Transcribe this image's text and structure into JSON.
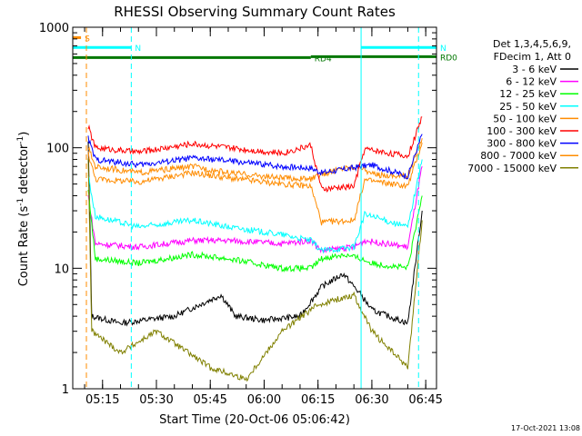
{
  "chart_data": {
    "type": "line",
    "title": "RHESSI Observing Summary Count Rates",
    "xlabel": "Start Time (20-Oct-06 05:06:42)",
    "ylabel_main": "Count Rate (s",
    "ylabel_sup1": "-1",
    "ylabel_mid": " detector",
    "ylabel_sup2": "-1",
    "ylabel_end": ")",
    "footer": "17-Oct-2021 13:08",
    "y_scale": "log",
    "ylim": [
      1,
      1000
    ],
    "xlim": [
      "05:06:42",
      "06:48:00"
    ],
    "x_ticks": [
      "05:15",
      "05:30",
      "05:45",
      "06:00",
      "06:15",
      "06:30",
      "06:45"
    ],
    "y_ticks": [
      {
        "value": 1,
        "label": "1"
      },
      {
        "value": 10,
        "label": "10"
      },
      {
        "value": 100,
        "label": "100"
      },
      {
        "value": 1000,
        "label": "1000"
      }
    ],
    "legend_header": [
      "Det 1,3,4,5,6,9,",
      "FDecim 1, Att 0"
    ],
    "legend_position": "right",
    "series": [
      {
        "name": "3 - 6 keV",
        "color": "#000000",
        "points": [
          [
            "05:11",
            110
          ],
          [
            "05:12",
            4
          ],
          [
            "05:20",
            3.5
          ],
          [
            "05:35",
            4
          ],
          [
            "05:48",
            6
          ],
          [
            "05:52",
            4
          ],
          [
            "06:00",
            3.7
          ],
          [
            "06:10",
            4
          ],
          [
            "06:16",
            7
          ],
          [
            "06:22",
            9
          ],
          [
            "06:27",
            6
          ],
          [
            "06:30",
            4.5
          ],
          [
            "06:40",
            3.5
          ],
          [
            "06:44",
            30
          ]
        ]
      },
      {
        "name": "6 - 12 keV",
        "color": "#ff00ff",
        "points": [
          [
            "05:11",
            40
          ],
          [
            "05:13",
            16
          ],
          [
            "05:25",
            15
          ],
          [
            "05:40",
            17
          ],
          [
            "05:50",
            17
          ],
          [
            "06:05",
            16
          ],
          [
            "06:13",
            17
          ],
          [
            "06:16",
            14
          ],
          [
            "06:25",
            15
          ],
          [
            "06:28",
            17
          ],
          [
            "06:40",
            15
          ],
          [
            "06:44",
            70
          ]
        ]
      },
      {
        "name": "12 - 25 keV",
        "color": "#00ff00",
        "points": [
          [
            "05:11",
            45
          ],
          [
            "05:13",
            12
          ],
          [
            "05:25",
            11
          ],
          [
            "05:40",
            13
          ],
          [
            "05:50",
            12
          ],
          [
            "06:05",
            10
          ],
          [
            "06:13",
            10
          ],
          [
            "06:16",
            12
          ],
          [
            "06:22",
            13
          ],
          [
            "06:27",
            12
          ],
          [
            "06:30",
            11
          ],
          [
            "06:40",
            10
          ],
          [
            "06:44",
            40
          ]
        ]
      },
      {
        "name": "25 - 50 keV",
        "color": "#00ffff",
        "points": [
          [
            "05:11",
            60
          ],
          [
            "05:13",
            27
          ],
          [
            "05:25",
            22
          ],
          [
            "05:40",
            25
          ],
          [
            "05:50",
            22
          ],
          [
            "06:05",
            19
          ],
          [
            "06:13",
            17
          ],
          [
            "06:16",
            14
          ],
          [
            "06:25",
            15
          ],
          [
            "06:28",
            28
          ],
          [
            "06:40",
            22
          ],
          [
            "06:44",
            80
          ]
        ]
      },
      {
        "name": "50 - 100 keV",
        "color": "#ff8c00",
        "points": [
          [
            "05:11",
            100
          ],
          [
            "05:13",
            70
          ],
          [
            "05:25",
            62
          ],
          [
            "05:40",
            70
          ],
          [
            "05:50",
            62
          ],
          [
            "06:05",
            56
          ],
          [
            "06:13",
            55
          ],
          [
            "06:16",
            60
          ],
          [
            "06:22",
            68
          ],
          [
            "06:27",
            70
          ],
          [
            "06:30",
            60
          ],
          [
            "06:40",
            58
          ],
          [
            "06:44",
            120
          ]
        ]
      },
      {
        "name": "100 - 300 keV",
        "color": "#ff0000",
        "points": [
          [
            "05:11",
            150
          ],
          [
            "05:13",
            100
          ],
          [
            "05:25",
            92
          ],
          [
            "05:40",
            108
          ],
          [
            "05:50",
            100
          ],
          [
            "06:05",
            90
          ],
          [
            "06:13",
            105
          ],
          [
            "06:16",
            45
          ],
          [
            "06:25",
            48
          ],
          [
            "06:28",
            98
          ],
          [
            "06:40",
            85
          ],
          [
            "06:44",
            180
          ]
        ]
      },
      {
        "name": "300 - 800 keV",
        "color": "#0000ff",
        "points": [
          [
            "05:11",
            120
          ],
          [
            "05:13",
            80
          ],
          [
            "05:25",
            72
          ],
          [
            "05:40",
            82
          ],
          [
            "05:50",
            78
          ],
          [
            "06:05",
            70
          ],
          [
            "06:13",
            68
          ],
          [
            "06:16",
            62
          ],
          [
            "06:22",
            66
          ],
          [
            "06:27",
            70
          ],
          [
            "06:30",
            72
          ],
          [
            "06:40",
            58
          ],
          [
            "06:44",
            130
          ]
        ]
      },
      {
        "name": "800 - 7000 keV",
        "color": "#ff8c00",
        "points": [
          [
            "05:11",
            90
          ],
          [
            "05:13",
            55
          ],
          [
            "05:25",
            52
          ],
          [
            "05:40",
            62
          ],
          [
            "05:50",
            56
          ],
          [
            "06:05",
            50
          ],
          [
            "06:13",
            48
          ],
          [
            "06:16",
            24
          ],
          [
            "06:25",
            25
          ],
          [
            "06:28",
            54
          ],
          [
            "06:40",
            48
          ],
          [
            "06:44",
            110
          ]
        ]
      },
      {
        "name": "7000 - 15000 keV",
        "color": "#808000",
        "points": [
          [
            "05:11",
            80
          ],
          [
            "05:12",
            3
          ],
          [
            "05:20",
            2
          ],
          [
            "05:30",
            3
          ],
          [
            "05:45",
            1.5
          ],
          [
            "05:55",
            1.2
          ],
          [
            "06:05",
            3
          ],
          [
            "06:15",
            5
          ],
          [
            "06:25",
            6
          ],
          [
            "06:30",
            3
          ],
          [
            "06:40",
            1.5
          ],
          [
            "06:44",
            25
          ]
        ]
      }
    ],
    "flag_bars": [
      {
        "label": "S",
        "color": "#ff8c00",
        "start": "05:06:42",
        "end": "05:09:00",
        "y": 820
      },
      {
        "label": "N",
        "color": "#00ffff",
        "start": "05:06:42",
        "end": "05:23:00",
        "y": 680
      },
      {
        "label": "N",
        "color": "#00ffff",
        "start": "06:27:00",
        "end": "06:48:00",
        "y": 680
      },
      {
        "label": "RD4",
        "color": "#007700",
        "start": "05:06:42",
        "end": "06:13:00",
        "y": 560
      },
      {
        "label": "RD0",
        "color": "#007700",
        "start": "06:13:00",
        "end": "06:48:00",
        "y": 570
      }
    ],
    "vertical_lines": [
      {
        "time": "05:06:42",
        "color": "#00ffff",
        "style": "solid"
      },
      {
        "time": "05:10:30",
        "color": "#ff8c00",
        "style": "dashed"
      },
      {
        "time": "05:23:00",
        "color": "#00ffff",
        "style": "dashed"
      },
      {
        "time": "06:27:00",
        "color": "#00ffff",
        "style": "solid"
      },
      {
        "time": "06:43:00",
        "color": "#00ffff",
        "style": "dashed"
      }
    ]
  }
}
